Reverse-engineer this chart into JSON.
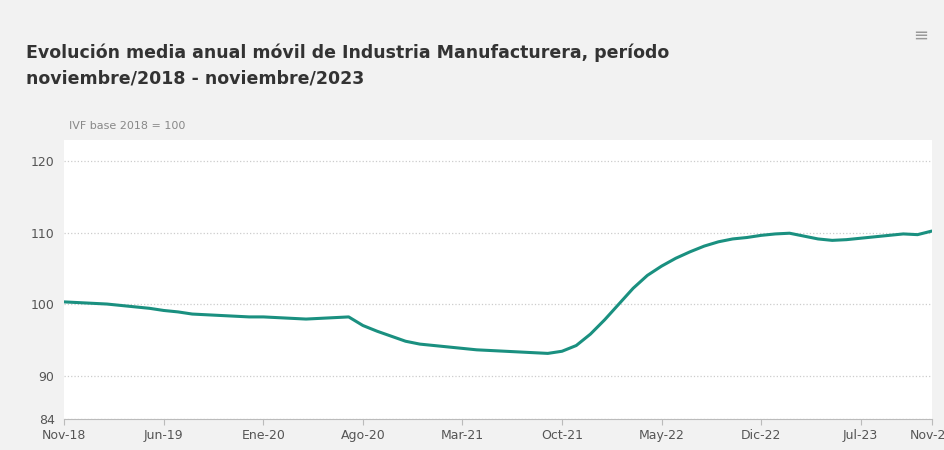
{
  "title_line1": "Evolución media anual móvil de Industria Manufacturera, período",
  "title_line2": "noviembre/2018 - noviembre/2023",
  "ylabel_annotation": "IVF base 2018 = 100",
  "line_color": "#1a9080",
  "line_width": 2.2,
  "background_color": "#f2f2f2",
  "plot_bg_color": "#ffffff",
  "title_bg_color": "#e8e8e8",
  "yticks": [
    84,
    90,
    100,
    110,
    120
  ],
  "ylim": [
    84,
    123
  ],
  "xtick_labels": [
    "Nov-18",
    "Jun-19",
    "Ene-20",
    "Ago-20",
    "Mar-21",
    "Oct-21",
    "May-22",
    "Dic-22",
    "Jul-23",
    "Nov-23"
  ],
  "y_values": [
    100.3,
    100.2,
    100.1,
    100.0,
    99.8,
    99.6,
    99.4,
    99.1,
    98.9,
    98.6,
    98.5,
    98.4,
    98.3,
    98.2,
    98.2,
    98.1,
    98.0,
    97.9,
    98.0,
    98.1,
    98.2,
    97.0,
    96.2,
    95.5,
    94.8,
    94.4,
    94.2,
    94.0,
    93.8,
    93.6,
    93.5,
    93.4,
    93.3,
    93.2,
    93.1,
    93.4,
    94.2,
    95.8,
    97.8,
    100.0,
    102.2,
    104.0,
    105.3,
    106.4,
    107.3,
    108.1,
    108.7,
    109.1,
    109.3,
    109.6,
    109.8,
    109.9,
    109.5,
    109.1,
    108.9,
    109.0,
    109.2,
    109.4,
    109.6,
    109.8,
    109.7,
    110.2
  ],
  "x_tick_positions": [
    0,
    7,
    14,
    21,
    28,
    35,
    42,
    49,
    56,
    61
  ]
}
